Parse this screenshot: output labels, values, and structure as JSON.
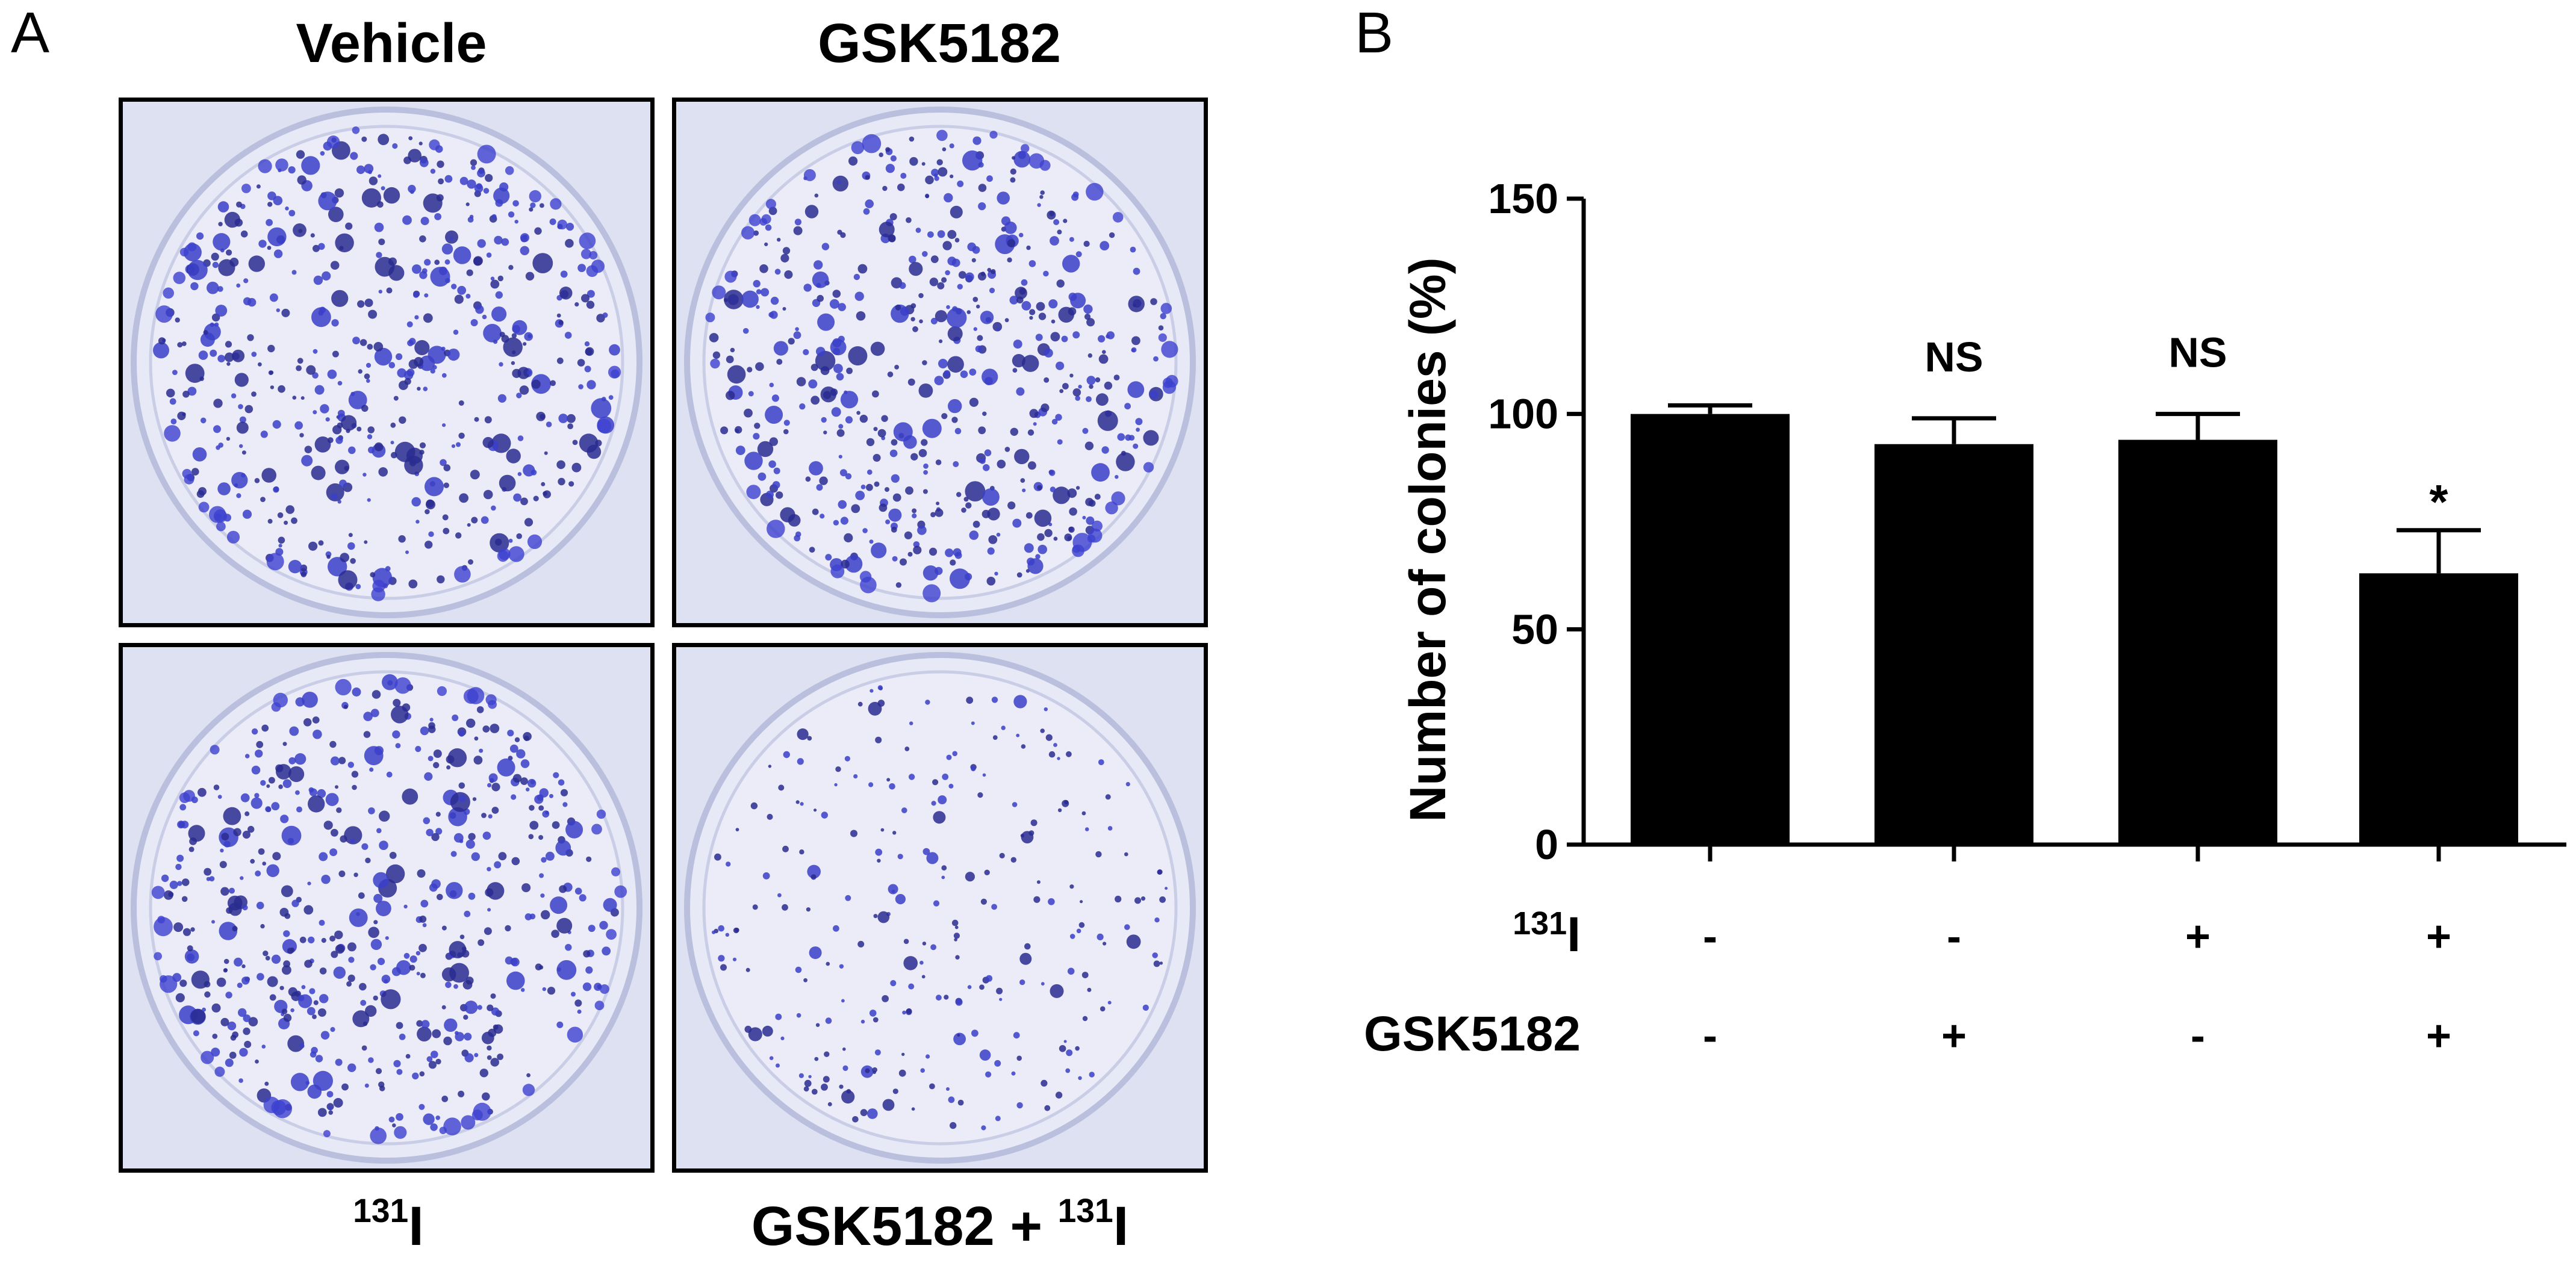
{
  "panel_a": {
    "letter": "A",
    "plates": [
      {
        "label": "Vehicle",
        "density": "high"
      },
      {
        "label": "GSK5182",
        "density": "high"
      },
      {
        "label_main": "I",
        "label_sup": "131",
        "density": "high"
      },
      {
        "label_prefix": "GSK5182 + ",
        "label_sup": "131",
        "label_main": "I",
        "density": "low"
      }
    ]
  },
  "panel_b": {
    "letter": "B",
    "treatment_rows": [
      {
        "label_sup": "131",
        "label_main": "I",
        "values": [
          "-",
          "-",
          "+",
          "+"
        ]
      },
      {
        "label": "GSK5182",
        "values": [
          "-",
          "+",
          "-",
          "+"
        ]
      }
    ]
  },
  "chart_data": {
    "type": "bar",
    "ylabel": "Number of colonies (%)",
    "ylim": [
      0,
      150
    ],
    "yticks": [
      0,
      50,
      100,
      150
    ],
    "categories": [
      "",
      "",
      "",
      ""
    ],
    "values": [
      100,
      93,
      94,
      63
    ],
    "errors": [
      2,
      6,
      6,
      10
    ],
    "annotations": [
      "",
      "NS",
      "NS",
      "*"
    ],
    "bar_color": "#000000"
  }
}
